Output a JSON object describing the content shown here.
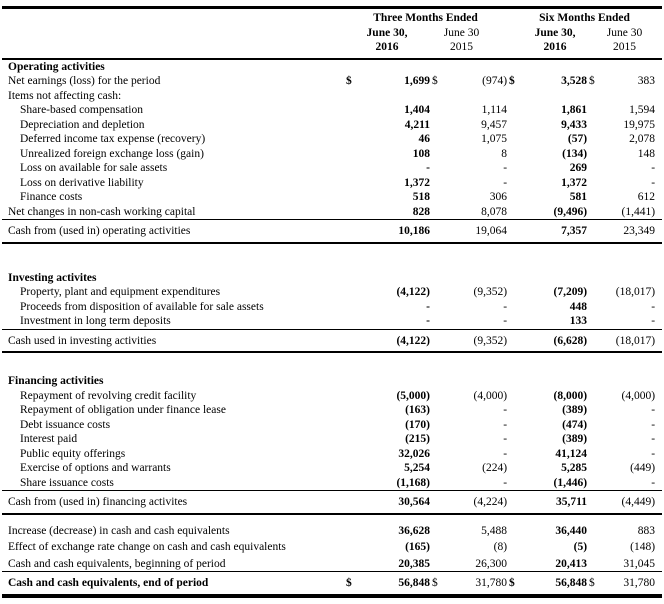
{
  "currency_symbol": "$",
  "header": {
    "group_three_months": "Three Months Ended",
    "group_six_months": "Six Months Ended",
    "columns": [
      {
        "line1": "June 30,",
        "line2": "2016"
      },
      {
        "line1": "June 30",
        "line2": "2015"
      },
      {
        "line1": "June 30,",
        "line2": "2016"
      },
      {
        "line1": "June 30",
        "line2": "2015"
      }
    ]
  },
  "rows": [
    {
      "kind": "title",
      "label": "Operating activities"
    },
    {
      "kind": "item",
      "label": "Net earnings (loss) for the period",
      "indent": 0,
      "dollar": true,
      "values": [
        "1,699",
        "(974)",
        "3,528",
        "383"
      ]
    },
    {
      "kind": "item",
      "label": "Items not affecting cash:",
      "indent": 0,
      "values": [
        "",
        "",
        "",
        ""
      ]
    },
    {
      "kind": "item",
      "label": "Share-based compensation",
      "indent": 1,
      "values": [
        "1,404",
        "1,114",
        "1,861",
        "1,594"
      ]
    },
    {
      "kind": "item",
      "label": "Depreciation and depletion",
      "indent": 1,
      "values": [
        "4,211",
        "9,457",
        "9,433",
        "19,975"
      ]
    },
    {
      "kind": "item",
      "label": "Deferred income tax expense (recovery)",
      "indent": 1,
      "values": [
        "46",
        "1,075",
        "(57)",
        "2,078"
      ]
    },
    {
      "kind": "item",
      "label": "Unrealized foreign exchange loss (gain)",
      "indent": 1,
      "values": [
        "108",
        "8",
        "(134)",
        "148"
      ]
    },
    {
      "kind": "item",
      "label": "Loss on available for sale assets",
      "indent": 1,
      "values": [
        "-",
        "-",
        "269",
        "-"
      ]
    },
    {
      "kind": "item",
      "label": "Loss on derivative liability",
      "indent": 1,
      "values": [
        "1,372",
        "-",
        "1,372",
        "-"
      ]
    },
    {
      "kind": "item",
      "label": "Finance costs",
      "indent": 1,
      "values": [
        "518",
        "306",
        "581",
        "612"
      ]
    },
    {
      "kind": "item",
      "label": "Net changes in non-cash working capital",
      "indent": 0,
      "values": [
        "828",
        "8,078",
        "(9,496)",
        "(1,441)"
      ]
    },
    {
      "kind": "total",
      "label": "Cash from (used in) operating activities",
      "values": [
        "10,186",
        "19,064",
        "7,357",
        "23,349"
      ]
    },
    {
      "kind": "gap",
      "height": 28
    },
    {
      "kind": "title",
      "label": "Investing activites"
    },
    {
      "kind": "item",
      "label": "Property, plant and equipment expenditures",
      "indent": 1,
      "values": [
        "(4,122)",
        "(9,352)",
        "(7,209)",
        "(18,017)"
      ]
    },
    {
      "kind": "item",
      "label": "Proceeds from disposition of available for sale assets",
      "indent": 1,
      "values": [
        "-",
        "-",
        "448",
        "-"
      ]
    },
    {
      "kind": "item",
      "label": "Investment in long term deposits",
      "indent": 1,
      "values": [
        "-",
        "-",
        "133",
        "-"
      ]
    },
    {
      "kind": "total",
      "label": "Cash used in investing activities",
      "values": [
        "(4,122)",
        "(9,352)",
        "(6,628)",
        "(18,017)"
      ]
    },
    {
      "kind": "gap",
      "height": 22
    },
    {
      "kind": "title",
      "label": "Financing activities"
    },
    {
      "kind": "item",
      "label": "Repayment of revolving credit facility",
      "indent": 1,
      "values": [
        "(5,000)",
        "(4,000)",
        "(8,000)",
        "(4,000)"
      ]
    },
    {
      "kind": "item",
      "label": "Repayment of obligation under finance lease",
      "indent": 1,
      "values": [
        "(163)",
        "-",
        "(389)",
        "-"
      ]
    },
    {
      "kind": "item",
      "label": "Debt issuance costs",
      "indent": 1,
      "values": [
        "(170)",
        "-",
        "(474)",
        "-"
      ]
    },
    {
      "kind": "item",
      "label": "Interest paid",
      "indent": 1,
      "values": [
        "(215)",
        "-",
        "(389)",
        "-"
      ]
    },
    {
      "kind": "item",
      "label": "Public equity offerings",
      "indent": 1,
      "values": [
        "32,026",
        "-",
        "41,124",
        "-"
      ]
    },
    {
      "kind": "item",
      "label": "Exercise of options and warrants",
      "indent": 1,
      "values": [
        "5,254",
        "(224)",
        "5,285",
        "(449)"
      ]
    },
    {
      "kind": "item",
      "label": "Share issuance costs",
      "indent": 1,
      "values": [
        "(1,168)",
        "-",
        "(1,446)",
        "-"
      ]
    },
    {
      "kind": "total",
      "label": "Cash from (used in) financing activites",
      "values": [
        "30,564",
        "(4,224)",
        "35,711",
        "(4,449)"
      ]
    },
    {
      "kind": "gap",
      "height": 8
    },
    {
      "kind": "item",
      "label": "Increase (decrease) in cash and cash equivalents",
      "indent": 0,
      "roomy": true,
      "values": [
        "36,628",
        "5,488",
        "36,440",
        "883"
      ]
    },
    {
      "kind": "item",
      "label": "Effect of exchange rate change on cash and cash equivalents",
      "indent": 0,
      "roomy": true,
      "values": [
        "(165)",
        "(8)",
        "(5)",
        "(148)"
      ]
    },
    {
      "kind": "item",
      "label": "Cash and cash equivalents, beginning of period",
      "indent": 0,
      "roomy": true,
      "values": [
        "20,385",
        "26,300",
        "20,413",
        "31,045"
      ]
    },
    {
      "kind": "grand-total",
      "label": "Cash and cash equivalents, end of period",
      "dollar": true,
      "values": [
        "56,848",
        "31,780",
        "56,848",
        "31,780"
      ]
    }
  ]
}
